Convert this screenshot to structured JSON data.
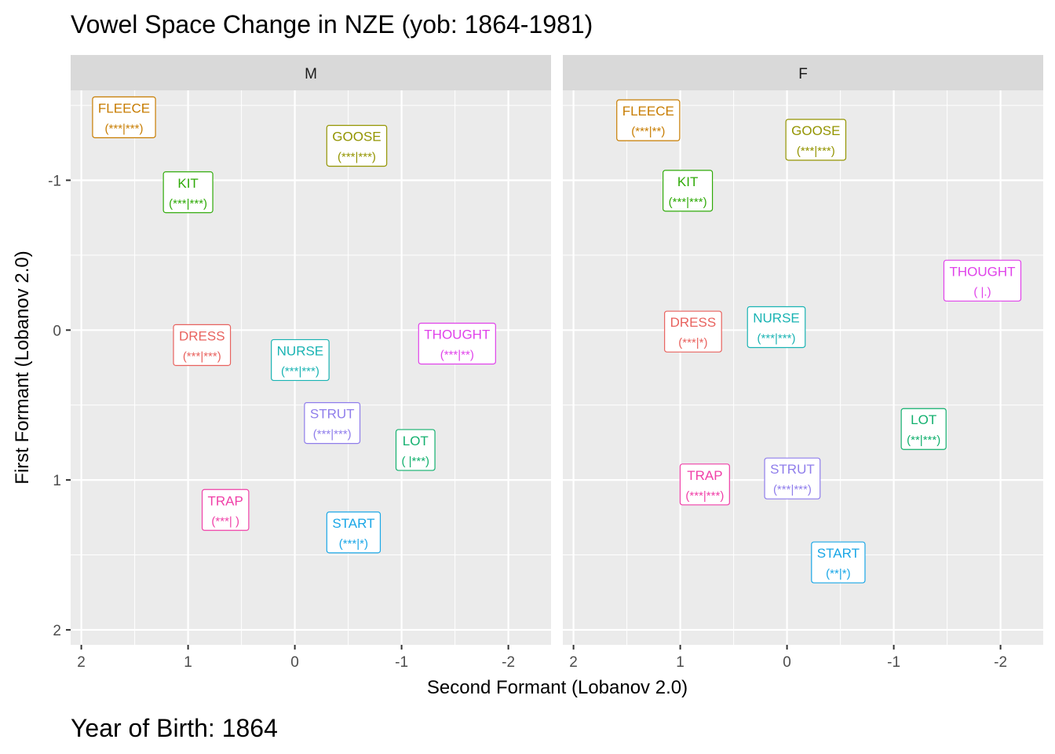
{
  "title": "Vowel Space Change in NZE (yob: 1864-1981)",
  "caption": "Year of Birth: 1864",
  "chart_data": {
    "type": "scatter",
    "xlabel": "Second Formant (Lobanov 2.0)",
    "ylabel": "First Formant (Lobanov 2.0)",
    "x_reversed": true,
    "y_reversed": true,
    "xlim": [
      2.1,
      -2.4
    ],
    "ylim": [
      -1.6,
      2.1
    ],
    "x_ticks": [
      2,
      1,
      0,
      -1,
      -2
    ],
    "x_tick_labels": [
      "2",
      "1",
      "0",
      "-1",
      "-2"
    ],
    "y_ticks": [
      -1,
      0,
      1,
      2
    ],
    "y_tick_labels": [
      "-1",
      "0",
      "1",
      "2"
    ],
    "grid": true,
    "colors": {
      "FLEECE": "#C77C00",
      "GOOSE": "#939400",
      "KIT": "#2FAA08",
      "NURSE": "#19B3B3",
      "DRESS": "#E8625E",
      "THOUGHT": "#E042EA",
      "STRUT": "#8F7DEB",
      "LOT": "#12B06E",
      "TRAP": "#F040A8",
      "START": "#19A6E6"
    },
    "panels": [
      {
        "strip": "M",
        "points": [
          {
            "vowel": "FLEECE",
            "label": "(***|***)",
            "x": 1.6,
            "y": -1.42
          },
          {
            "vowel": "GOOSE",
            "label": "(***|***)",
            "x": -0.58,
            "y": -1.23
          },
          {
            "vowel": "KIT",
            "label": "(***|***)",
            "x": 1.0,
            "y": -0.92
          },
          {
            "vowel": "NURSE",
            "label": "(***|***)",
            "x": -0.05,
            "y": 0.2
          },
          {
            "vowel": "DRESS",
            "label": "(***|***)",
            "x": 0.87,
            "y": 0.1
          },
          {
            "vowel": "THOUGHT",
            "label": "(***|**)",
            "x": -1.52,
            "y": 0.09
          },
          {
            "vowel": "STRUT",
            "label": "(***|***)",
            "x": -0.35,
            "y": 0.62
          },
          {
            "vowel": "LOT",
            "label": "( |***)",
            "x": -1.13,
            "y": 0.8
          },
          {
            "vowel": "TRAP",
            "label": "(***| )",
            "x": 0.65,
            "y": 1.2
          },
          {
            "vowel": "START",
            "label": "(***|*)",
            "x": -0.55,
            "y": 1.35
          }
        ]
      },
      {
        "strip": "F",
        "points": [
          {
            "vowel": "FLEECE",
            "label": "(***|**)",
            "x": 1.3,
            "y": -1.4
          },
          {
            "vowel": "GOOSE",
            "label": "(***|***)",
            "x": -0.27,
            "y": -1.27
          },
          {
            "vowel": "KIT",
            "label": "(***|***)",
            "x": 0.93,
            "y": -0.93
          },
          {
            "vowel": "THOUGHT",
            "label": "( |.)",
            "x": -1.83,
            "y": -0.33
          },
          {
            "vowel": "DRESS",
            "label": "(***|*)",
            "x": 0.88,
            "y": 0.01
          },
          {
            "vowel": "NURSE",
            "label": "(***|***)",
            "x": 0.1,
            "y": -0.02
          },
          {
            "vowel": "LOT",
            "label": "(**|***)",
            "x": -1.28,
            "y": 0.66
          },
          {
            "vowel": "TRAP",
            "label": "(***|***)",
            "x": 0.77,
            "y": 1.03
          },
          {
            "vowel": "STRUT",
            "label": "(***|***)",
            "x": -0.05,
            "y": 0.99
          },
          {
            "vowel": "START",
            "label": "(**|*)",
            "x": -0.48,
            "y": 1.55
          }
        ]
      }
    ]
  }
}
